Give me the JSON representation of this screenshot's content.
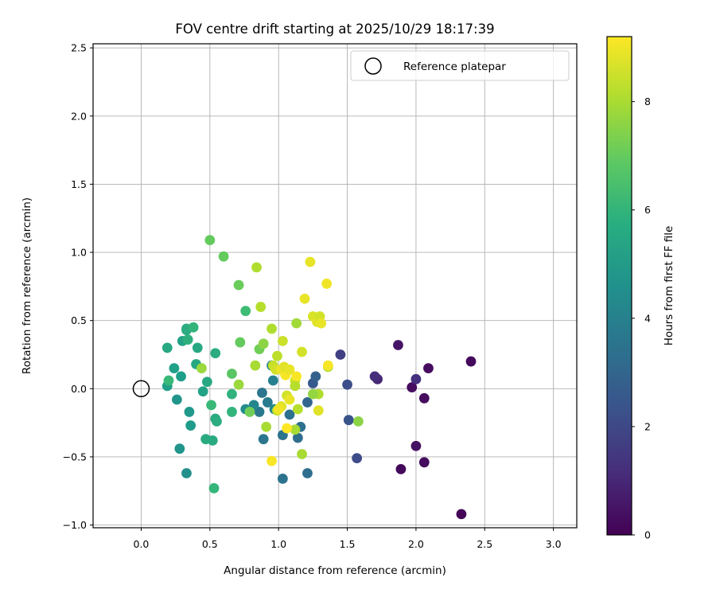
{
  "chart_data": {
    "type": "scatter",
    "title": "FOV centre drift starting at 2025/10/29 18:17:39",
    "xlabel": "Angular distance from reference (arcmin)",
    "ylabel": "Rotation from reference (arcmin)",
    "xlim": [
      -0.35,
      3.17
    ],
    "ylim": [
      -1.02,
      2.53
    ],
    "xticks": [
      0.0,
      0.5,
      1.0,
      1.5,
      2.0,
      2.5,
      3.0
    ],
    "xtick_labels": [
      "0.0",
      "0.5",
      "1.0",
      "1.5",
      "2.0",
      "2.5",
      "3.0"
    ],
    "yticks": [
      -1.0,
      -0.5,
      0.0,
      0.5,
      1.0,
      1.5,
      2.0,
      2.5
    ],
    "ytick_labels": [
      "−1.0",
      "−0.5",
      "0.0",
      "0.5",
      "1.0",
      "1.5",
      "2.0",
      "2.5"
    ],
    "grid": true,
    "legend": {
      "location": "top-right",
      "entries": [
        "Reference platepar"
      ]
    },
    "reference_point": {
      "x": 0.0,
      "y": 0.0
    },
    "colorbar": {
      "label": "Hours from first FF file",
      "range": [
        0,
        9.2
      ],
      "ticks": [
        0,
        2,
        4,
        6,
        8
      ],
      "tick_labels": [
        "0",
        "2",
        "4",
        "6",
        "8"
      ],
      "colormap": "viridis"
    },
    "points": [
      {
        "x": 2.33,
        "y": -0.92,
        "h": 0.1
      },
      {
        "x": 2.4,
        "y": 0.2,
        "h": 0.2
      },
      {
        "x": 1.89,
        "y": -0.59,
        "h": 0.2
      },
      {
        "x": 2.06,
        "y": -0.54,
        "h": 0.3
      },
      {
        "x": 2.0,
        "y": -0.42,
        "h": 0.4
      },
      {
        "x": 2.06,
        "y": -0.07,
        "h": 0.3
      },
      {
        "x": 1.97,
        "y": 0.01,
        "h": 0.3
      },
      {
        "x": 2.09,
        "y": 0.15,
        "h": 0.3
      },
      {
        "x": 1.87,
        "y": 0.32,
        "h": 0.5
      },
      {
        "x": 1.72,
        "y": 0.07,
        "h": 1.0
      },
      {
        "x": 1.7,
        "y": 0.09,
        "h": 1.2
      },
      {
        "x": 2.0,
        "y": 0.07,
        "h": 1.3
      },
      {
        "x": 1.45,
        "y": 0.25,
        "h": 1.7
      },
      {
        "x": 1.57,
        "y": -0.51,
        "h": 2.1
      },
      {
        "x": 1.51,
        "y": -0.23,
        "h": 2.4
      },
      {
        "x": 1.5,
        "y": 0.03,
        "h": 2.2
      },
      {
        "x": 1.25,
        "y": 0.04,
        "h": 2.6
      },
      {
        "x": 1.27,
        "y": 0.09,
        "h": 2.8
      },
      {
        "x": 1.21,
        "y": -0.1,
        "h": 3.0
      },
      {
        "x": 1.21,
        "y": -0.62,
        "h": 3.3
      },
      {
        "x": 1.14,
        "y": -0.36,
        "h": 3.3
      },
      {
        "x": 1.16,
        "y": -0.28,
        "h": 3.4
      },
      {
        "x": 1.08,
        "y": -0.19,
        "h": 3.4
      },
      {
        "x": 1.03,
        "y": -0.34,
        "h": 3.5
      },
      {
        "x": 1.03,
        "y": -0.66,
        "h": 3.5
      },
      {
        "x": 0.88,
        "y": -0.03,
        "h": 3.6
      },
      {
        "x": 0.89,
        "y": -0.37,
        "h": 3.6
      },
      {
        "x": 0.86,
        "y": -0.17,
        "h": 3.7
      },
      {
        "x": 0.92,
        "y": -0.1,
        "h": 3.8
      },
      {
        "x": 0.96,
        "y": 0.06,
        "h": 4.0
      },
      {
        "x": 0.95,
        "y": 0.17,
        "h": 4.1
      },
      {
        "x": 0.82,
        "y": -0.12,
        "h": 4.2
      },
      {
        "x": 0.76,
        "y": -0.15,
        "h": 4.5
      },
      {
        "x": 0.97,
        "y": -0.15,
        "h": 4.4
      },
      {
        "x": 0.33,
        "y": -0.62,
        "h": 4.6
      },
      {
        "x": 0.28,
        "y": -0.44,
        "h": 4.8
      },
      {
        "x": 0.26,
        "y": -0.08,
        "h": 4.8
      },
      {
        "x": 0.35,
        "y": -0.17,
        "h": 4.9
      },
      {
        "x": 0.36,
        "y": -0.27,
        "h": 5.0
      },
      {
        "x": 0.29,
        "y": 0.09,
        "h": 5.1
      },
      {
        "x": 0.24,
        "y": 0.15,
        "h": 5.2
      },
      {
        "x": 0.19,
        "y": 0.02,
        "h": 5.2
      },
      {
        "x": 0.3,
        "y": 0.35,
        "h": 5.3
      },
      {
        "x": 0.33,
        "y": 0.43,
        "h": 5.4
      },
      {
        "x": 0.4,
        "y": 0.18,
        "h": 5.5
      },
      {
        "x": 0.41,
        "y": 0.3,
        "h": 5.5
      },
      {
        "x": 0.45,
        "y": -0.02,
        "h": 5.3
      },
      {
        "x": 0.48,
        "y": 0.05,
        "h": 5.5
      },
      {
        "x": 0.47,
        "y": -0.37,
        "h": 5.6
      },
      {
        "x": 0.52,
        "y": -0.38,
        "h": 5.6
      },
      {
        "x": 0.54,
        "y": -0.22,
        "h": 5.6
      },
      {
        "x": 0.55,
        "y": -0.24,
        "h": 5.7
      },
      {
        "x": 0.54,
        "y": 0.26,
        "h": 5.7
      },
      {
        "x": 0.34,
        "y": 0.36,
        "h": 5.8
      },
      {
        "x": 0.33,
        "y": 0.44,
        "h": 5.7
      },
      {
        "x": 0.38,
        "y": 0.45,
        "h": 6.0
      },
      {
        "x": 0.19,
        "y": 0.3,
        "h": 5.5
      },
      {
        "x": 0.2,
        "y": 0.06,
        "h": 6.2
      },
      {
        "x": 0.51,
        "y": -0.12,
        "h": 6.2
      },
      {
        "x": 0.53,
        "y": -0.73,
        "h": 6.1
      },
      {
        "x": 0.66,
        "y": -0.04,
        "h": 5.9
      },
      {
        "x": 0.66,
        "y": -0.17,
        "h": 6.0
      },
      {
        "x": 0.76,
        "y": 0.57,
        "h": 6.3
      },
      {
        "x": 0.44,
        "y": 0.15,
        "h": 7.8
      },
      {
        "x": 0.5,
        "y": 1.09,
        "h": 7.0
      },
      {
        "x": 0.6,
        "y": 0.97,
        "h": 7.0
      },
      {
        "x": 0.66,
        "y": 0.11,
        "h": 6.8
      },
      {
        "x": 0.71,
        "y": 0.76,
        "h": 7.1
      },
      {
        "x": 0.72,
        "y": 0.34,
        "h": 7.0
      },
      {
        "x": 0.71,
        "y": 0.03,
        "h": 7.8
      },
      {
        "x": 0.79,
        "y": -0.17,
        "h": 7.2
      },
      {
        "x": 0.86,
        "y": 0.29,
        "h": 7.2
      },
      {
        "x": 0.89,
        "y": 0.33,
        "h": 7.6
      },
      {
        "x": 0.83,
        "y": 0.17,
        "h": 8.0
      },
      {
        "x": 0.87,
        "y": 0.6,
        "h": 8.2
      },
      {
        "x": 0.84,
        "y": 0.89,
        "h": 8.1
      },
      {
        "x": 0.91,
        "y": -0.28,
        "h": 8.0
      },
      {
        "x": 0.95,
        "y": 0.44,
        "h": 8.1
      },
      {
        "x": 0.99,
        "y": 0.24,
        "h": 8.3
      },
      {
        "x": 1.03,
        "y": 0.35,
        "h": 8.5
      },
      {
        "x": 0.96,
        "y": 0.17,
        "h": 8.4
      },
      {
        "x": 0.98,
        "y": 0.14,
        "h": 8.6
      },
      {
        "x": 1.02,
        "y": 0.14,
        "h": 9.0
      },
      {
        "x": 1.05,
        "y": 0.1,
        "h": 9.1
      },
      {
        "x": 1.04,
        "y": 0.16,
        "h": 8.8
      },
      {
        "x": 1.06,
        "y": -0.05,
        "h": 8.6
      },
      {
        "x": 1.08,
        "y": -0.08,
        "h": 8.9
      },
      {
        "x": 1.02,
        "y": -0.13,
        "h": 8.8
      },
      {
        "x": 0.99,
        "y": -0.16,
        "h": 8.4
      },
      {
        "x": 1.0,
        "y": -0.15,
        "h": 9.0
      },
      {
        "x": 1.08,
        "y": 0.14,
        "h": 8.9
      },
      {
        "x": 1.12,
        "y": 0.06,
        "h": 8.5
      },
      {
        "x": 1.13,
        "y": 0.09,
        "h": 9.1
      },
      {
        "x": 1.12,
        "y": 0.02,
        "h": 8.2
      },
      {
        "x": 1.12,
        "y": -0.3,
        "h": 8.0
      },
      {
        "x": 1.14,
        "y": -0.15,
        "h": 8.2
      },
      {
        "x": 1.06,
        "y": -0.29,
        "h": 9.2
      },
      {
        "x": 0.95,
        "y": -0.53,
        "h": 9.1
      },
      {
        "x": 1.17,
        "y": -0.48,
        "h": 8.0
      },
      {
        "x": 1.13,
        "y": 0.48,
        "h": 7.9
      },
      {
        "x": 1.17,
        "y": 0.27,
        "h": 8.6
      },
      {
        "x": 1.19,
        "y": 0.66,
        "h": 8.9
      },
      {
        "x": 1.23,
        "y": 0.93,
        "h": 8.9
      },
      {
        "x": 1.25,
        "y": 0.53,
        "h": 8.7
      },
      {
        "x": 1.28,
        "y": 0.49,
        "h": 8.8
      },
      {
        "x": 1.3,
        "y": 0.53,
        "h": 8.6
      },
      {
        "x": 1.31,
        "y": 0.48,
        "h": 8.9
      },
      {
        "x": 1.35,
        "y": 0.77,
        "h": 9.0
      },
      {
        "x": 1.36,
        "y": 0.16,
        "h": 8.1
      },
      {
        "x": 1.36,
        "y": 0.17,
        "h": 9.1
      },
      {
        "x": 1.29,
        "y": -0.04,
        "h": 8.1
      },
      {
        "x": 1.29,
        "y": -0.16,
        "h": 8.8
      },
      {
        "x": 1.25,
        "y": -0.04,
        "h": 7.7
      },
      {
        "x": 1.58,
        "y": -0.24,
        "h": 7.6
      }
    ]
  }
}
